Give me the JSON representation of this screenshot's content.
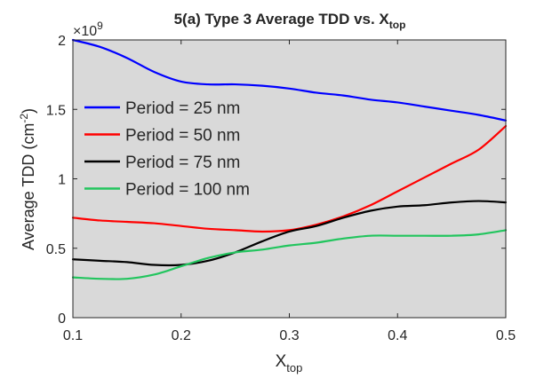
{
  "chart_data": {
    "type": "line",
    "title": {
      "main": "5(a) Type 3 Average TDD vs. X",
      "sub": "top"
    },
    "xlabel": {
      "main": "X",
      "sub": "top"
    },
    "ylabel": {
      "main": "Average TDD (cm",
      "sup": "-2",
      "tail": ")"
    },
    "exponent_label": {
      "base": "×10",
      "power": "9"
    },
    "xlim": [
      0.1,
      0.5
    ],
    "ylim": [
      0,
      2
    ],
    "xticks": [
      "0.1",
      "0.2",
      "0.3",
      "0.4",
      "0.5"
    ],
    "yticks": [
      "0",
      "0.5",
      "1",
      "1.5",
      "2"
    ],
    "y_multiplier": 1000000000,
    "grid": false,
    "legend_position": "upper-left",
    "background_color": "#d9d9d9",
    "x": [
      0.1,
      0.125,
      0.15,
      0.175,
      0.2,
      0.225,
      0.25,
      0.275,
      0.3,
      0.325,
      0.35,
      0.375,
      0.4,
      0.425,
      0.45,
      0.475,
      0.5
    ],
    "series": [
      {
        "name": "Period = 25 nm",
        "color": "#0000ff",
        "values": [
          2.0,
          1.95,
          1.87,
          1.77,
          1.7,
          1.68,
          1.68,
          1.67,
          1.65,
          1.62,
          1.6,
          1.57,
          1.55,
          1.52,
          1.49,
          1.46,
          1.42
        ]
      },
      {
        "name": "Period = 50 nm",
        "color": "#ff0000",
        "values": [
          0.72,
          0.7,
          0.69,
          0.68,
          0.66,
          0.64,
          0.63,
          0.62,
          0.63,
          0.67,
          0.73,
          0.81,
          0.91,
          1.01,
          1.11,
          1.21,
          1.38
        ]
      },
      {
        "name": "Period = 75 nm",
        "color": "#000000",
        "values": [
          0.42,
          0.41,
          0.4,
          0.38,
          0.38,
          0.41,
          0.47,
          0.55,
          0.62,
          0.66,
          0.72,
          0.77,
          0.8,
          0.81,
          0.83,
          0.84,
          0.83
        ]
      },
      {
        "name": "Period = 100 nm",
        "color": "#22c55e",
        "values": [
          0.29,
          0.28,
          0.28,
          0.31,
          0.37,
          0.43,
          0.47,
          0.49,
          0.52,
          0.54,
          0.57,
          0.59,
          0.59,
          0.59,
          0.59,
          0.6,
          0.63
        ]
      }
    ]
  }
}
